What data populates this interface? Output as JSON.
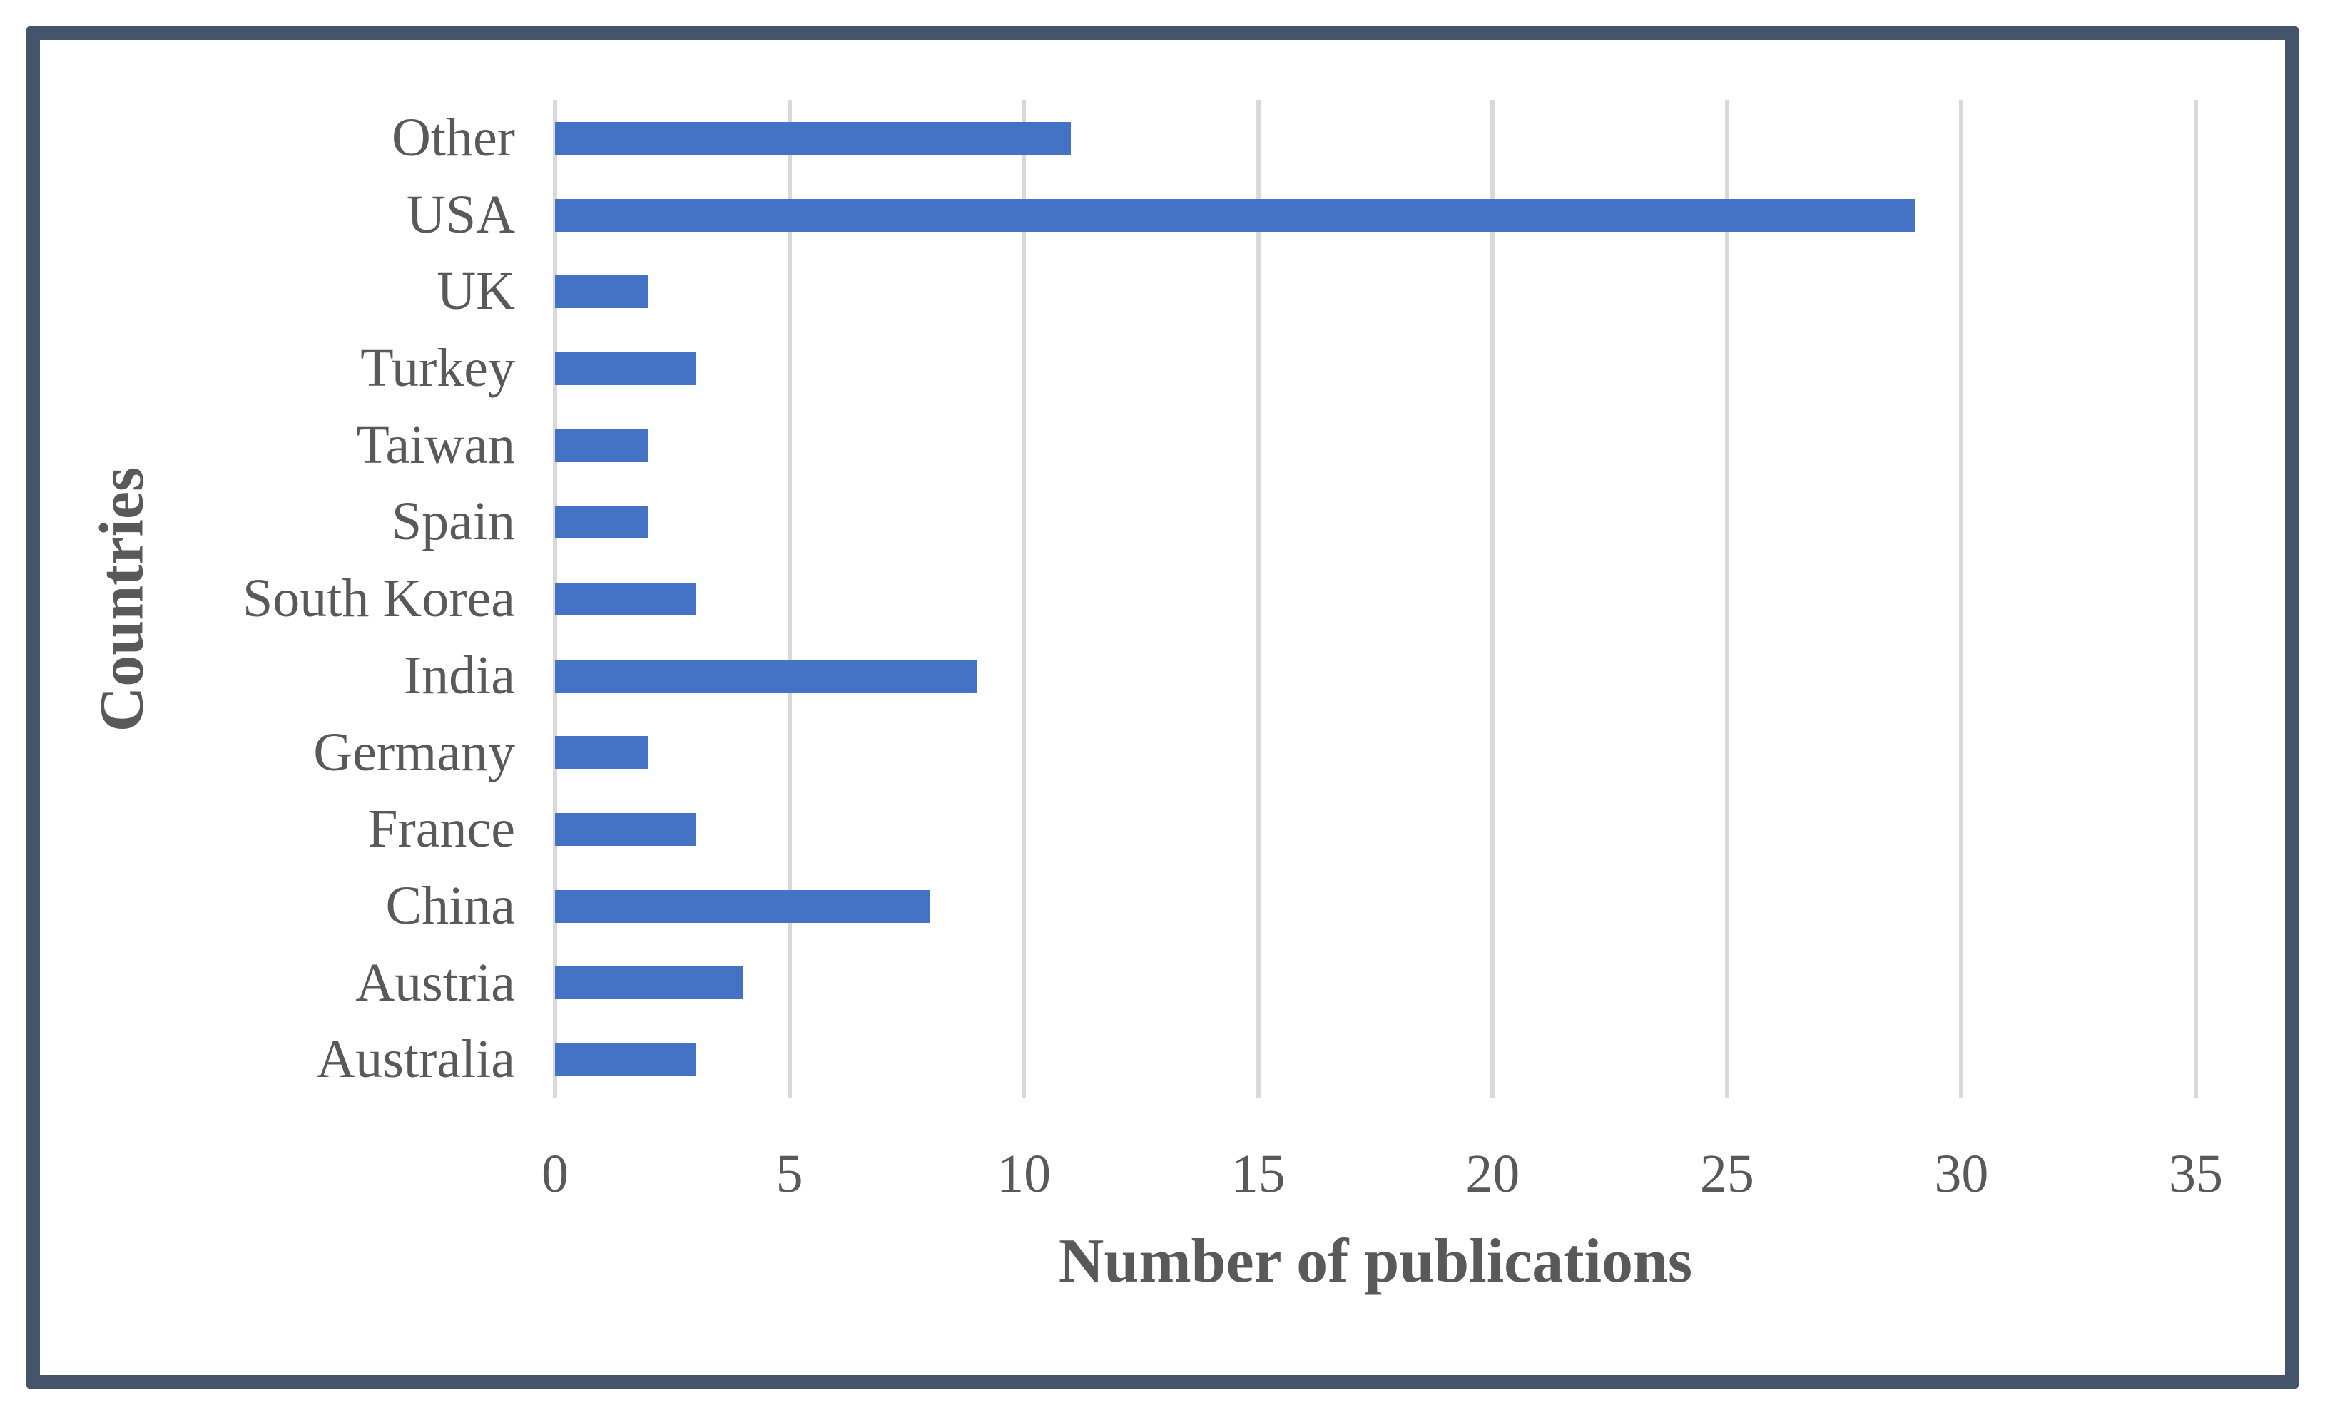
{
  "chart_data": {
    "type": "bar",
    "orientation": "horizontal",
    "title": "",
    "xlabel": "Number of publications",
    "ylabel": "Countries",
    "categories": [
      "Other",
      "USA",
      "UK",
      "Turkey",
      "Taiwan",
      "Spain",
      "South Korea",
      "India",
      "Germany",
      "France",
      "China",
      "Austria",
      "Australia"
    ],
    "values": [
      11,
      29,
      2,
      3,
      2,
      2,
      3,
      9,
      2,
      3,
      8,
      4,
      3
    ],
    "xlim": [
      0,
      35
    ],
    "xticks": [
      0,
      5,
      10,
      15,
      20,
      25,
      30,
      35
    ],
    "grid": true,
    "legend": false,
    "colors": {
      "bar": "#4472C4",
      "gridline": "#D9D9D9",
      "text": "#595959",
      "frame": "#44546A",
      "background": "#FFFFFF"
    }
  }
}
